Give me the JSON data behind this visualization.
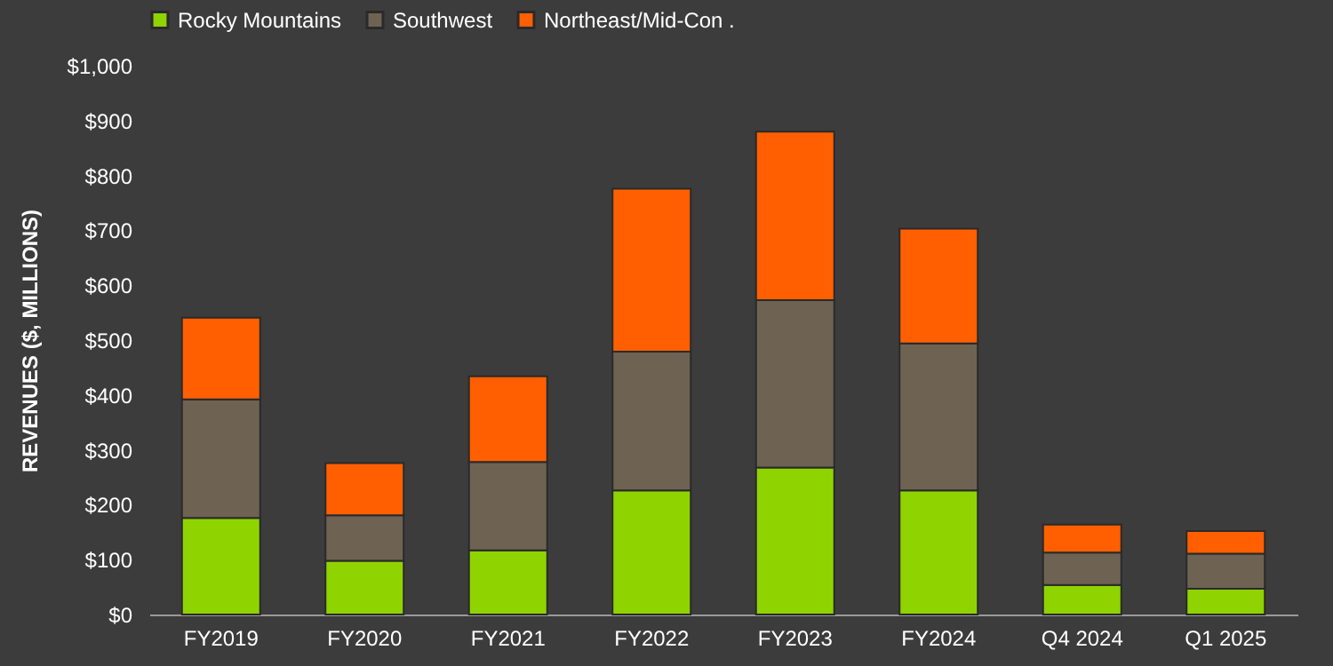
{
  "chart_data": {
    "type": "bar",
    "stacked": true,
    "ylabel": "REVENUES ($, MILLIONS)",
    "categories": [
      "FY2019",
      "FY2020",
      "FY2021",
      "FY2022",
      "FY2023",
      "FY2024",
      "Q4 2024",
      "Q1 2025"
    ],
    "series": [
      {
        "name": "Rocky Mountains",
        "color": "#8fd400",
        "values": [
          176,
          98,
          117,
          226,
          268,
          226,
          54,
          47
        ]
      },
      {
        "name": "Southwest",
        "color": "#6e6353",
        "values": [
          216,
          83,
          161,
          253,
          305,
          268,
          59,
          64
        ]
      },
      {
        "name": "Northeast/Mid-Con .",
        "color": "#ff5f00",
        "values": [
          149,
          95,
          156,
          297,
          307,
          209,
          51,
          41
        ]
      }
    ],
    "ylim": [
      0,
      1000
    ],
    "yticks": [
      {
        "value": 0,
        "label": "$0"
      },
      {
        "value": 100,
        "label": "$100"
      },
      {
        "value": 200,
        "label": "$200"
      },
      {
        "value": 300,
        "label": "$300"
      },
      {
        "value": 400,
        "label": "$400"
      },
      {
        "value": 500,
        "label": "$500"
      },
      {
        "value": 600,
        "label": "$600"
      },
      {
        "value": 700,
        "label": "$700"
      },
      {
        "value": 800,
        "label": "$800"
      },
      {
        "value": 900,
        "label": "$900"
      },
      {
        "value": 1000,
        "label": "$1,000"
      }
    ],
    "grid": false,
    "legend": "top"
  }
}
